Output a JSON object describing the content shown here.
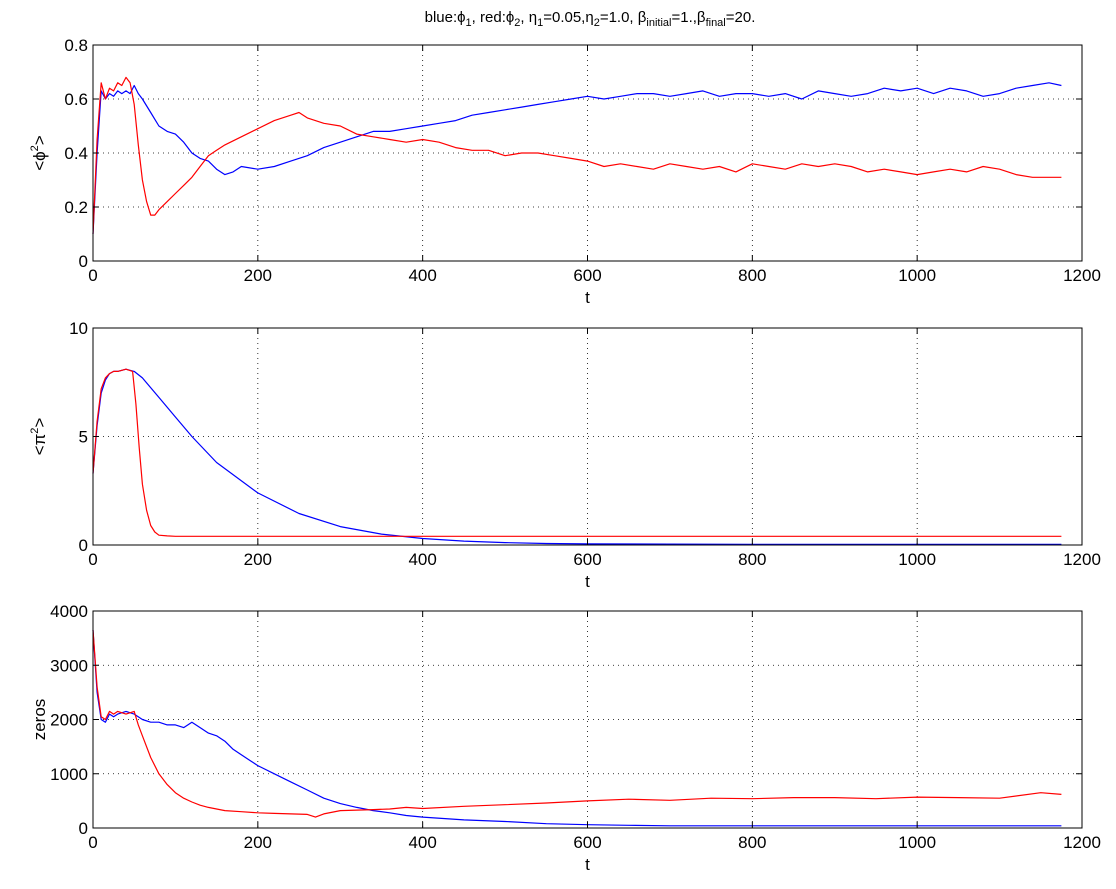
{
  "title": {
    "blue_prefix": "blue:",
    "phi": "ϕ",
    "sub1": "1",
    "red_prefix": "red:",
    "sub2": "2",
    "eta": "η",
    "eta1_val": "=0.05,",
    "eta2_val": "=1.0,",
    "beta": "β",
    "initial": "initial",
    "beta_initial_val": "=1.,",
    "final": "final",
    "beta_final_val": "=20."
  },
  "chart_data": [
    {
      "type": "line",
      "xlabel": "t",
      "ylabel": "<ϕ²>",
      "ylabel_parts": {
        "open": "<",
        "symbol": "ϕ",
        "sup": "2",
        "close": ">"
      },
      "xlim": [
        0,
        1200
      ],
      "ylim": [
        0,
        0.8
      ],
      "x_ticks": [
        0,
        200,
        400,
        600,
        800,
        1000,
        1200
      ],
      "y_ticks": [
        0,
        0.2,
        0.4,
        0.6,
        0.8
      ],
      "x_tick_labels": [
        "0",
        "200",
        "400",
        "600",
        "800",
        "1000",
        "1200"
      ],
      "y_tick_labels": [
        "0",
        "0.2",
        "0.4",
        "0.6",
        "0.8"
      ],
      "grid": true,
      "series": [
        {
          "color": "#0000ff",
          "x": [
            0,
            5,
            10,
            15,
            20,
            25,
            30,
            35,
            40,
            45,
            50,
            55,
            60,
            70,
            80,
            90,
            100,
            110,
            120,
            130,
            140,
            150,
            160,
            170,
            180,
            200,
            220,
            240,
            260,
            280,
            300,
            320,
            340,
            360,
            380,
            400,
            420,
            440,
            460,
            480,
            500,
            520,
            540,
            560,
            580,
            600,
            620,
            640,
            660,
            680,
            700,
            720,
            740,
            760,
            780,
            800,
            820,
            840,
            860,
            880,
            900,
            920,
            940,
            960,
            980,
            1000,
            1020,
            1040,
            1060,
            1080,
            1100,
            1120,
            1140,
            1160,
            1175
          ],
          "y": [
            0.1,
            0.4,
            0.63,
            0.6,
            0.62,
            0.61,
            0.63,
            0.62,
            0.63,
            0.62,
            0.65,
            0.62,
            0.6,
            0.55,
            0.5,
            0.48,
            0.47,
            0.44,
            0.4,
            0.38,
            0.37,
            0.34,
            0.32,
            0.33,
            0.35,
            0.34,
            0.35,
            0.37,
            0.39,
            0.42,
            0.44,
            0.46,
            0.48,
            0.48,
            0.49,
            0.5,
            0.51,
            0.52,
            0.54,
            0.55,
            0.56,
            0.57,
            0.58,
            0.59,
            0.6,
            0.61,
            0.6,
            0.61,
            0.62,
            0.62,
            0.61,
            0.62,
            0.63,
            0.61,
            0.62,
            0.62,
            0.61,
            0.62,
            0.6,
            0.63,
            0.62,
            0.61,
            0.62,
            0.64,
            0.63,
            0.64,
            0.62,
            0.64,
            0.63,
            0.61,
            0.62,
            0.64,
            0.65,
            0.66,
            0.65
          ]
        },
        {
          "color": "#ff0000",
          "x": [
            0,
            5,
            10,
            15,
            20,
            25,
            30,
            35,
            40,
            45,
            50,
            55,
            60,
            65,
            70,
            75,
            80,
            90,
            100,
            110,
            120,
            130,
            140,
            150,
            160,
            180,
            200,
            220,
            240,
            250,
            260,
            280,
            300,
            320,
            340,
            360,
            380,
            400,
            420,
            440,
            460,
            480,
            500,
            520,
            540,
            560,
            580,
            600,
            620,
            640,
            660,
            680,
            700,
            720,
            740,
            760,
            780,
            800,
            820,
            840,
            860,
            880,
            900,
            920,
            940,
            960,
            980,
            1000,
            1020,
            1040,
            1060,
            1080,
            1100,
            1120,
            1140,
            1160,
            1175
          ],
          "y": [
            0.1,
            0.45,
            0.66,
            0.6,
            0.64,
            0.63,
            0.66,
            0.65,
            0.68,
            0.66,
            0.58,
            0.43,
            0.3,
            0.22,
            0.17,
            0.17,
            0.19,
            0.22,
            0.25,
            0.28,
            0.31,
            0.35,
            0.39,
            0.41,
            0.43,
            0.46,
            0.49,
            0.52,
            0.54,
            0.55,
            0.53,
            0.51,
            0.5,
            0.47,
            0.46,
            0.45,
            0.44,
            0.45,
            0.44,
            0.42,
            0.41,
            0.41,
            0.39,
            0.4,
            0.4,
            0.39,
            0.38,
            0.37,
            0.35,
            0.36,
            0.35,
            0.34,
            0.36,
            0.35,
            0.34,
            0.35,
            0.33,
            0.36,
            0.35,
            0.34,
            0.36,
            0.35,
            0.36,
            0.35,
            0.33,
            0.34,
            0.33,
            0.32,
            0.33,
            0.34,
            0.33,
            0.35,
            0.34,
            0.32,
            0.31,
            0.31,
            0.31
          ]
        }
      ]
    },
    {
      "type": "line",
      "xlabel": "t",
      "ylabel": "<π²>",
      "ylabel_parts": {
        "open": "<",
        "symbol": "π",
        "sup": "2",
        "close": ">"
      },
      "xlim": [
        0,
        1200
      ],
      "ylim": [
        0,
        10
      ],
      "x_ticks": [
        0,
        200,
        400,
        600,
        800,
        1000,
        1200
      ],
      "y_ticks": [
        0,
        5,
        10
      ],
      "x_tick_labels": [
        "0",
        "200",
        "400",
        "600",
        "800",
        "1000",
        "1200"
      ],
      "y_tick_labels": [
        "0",
        "5",
        "10"
      ],
      "grid": true,
      "series": [
        {
          "color": "#0000ff",
          "x": [
            0,
            5,
            10,
            15,
            20,
            25,
            30,
            40,
            50,
            60,
            80,
            100,
            120,
            150,
            200,
            250,
            300,
            350,
            400,
            450,
            500,
            550,
            600,
            700,
            800,
            900,
            1000,
            1100,
            1175
          ],
          "y": [
            3.3,
            5.5,
            7.0,
            7.6,
            7.9,
            8.0,
            8.0,
            8.1,
            8.0,
            7.7,
            6.8,
            5.9,
            5.0,
            3.8,
            2.4,
            1.45,
            0.85,
            0.5,
            0.3,
            0.18,
            0.11,
            0.07,
            0.05,
            0.04,
            0.03,
            0.03,
            0.03,
            0.03,
            0.03
          ]
        },
        {
          "color": "#ff0000",
          "x": [
            0,
            5,
            10,
            15,
            20,
            25,
            30,
            40,
            48,
            52,
            56,
            60,
            65,
            70,
            75,
            80,
            90,
            100,
            200,
            300,
            400,
            500,
            600,
            700,
            800,
            900,
            1000,
            1100,
            1175
          ],
          "y": [
            3.3,
            5.7,
            7.2,
            7.7,
            7.9,
            8.0,
            8.0,
            8.1,
            8.0,
            6.5,
            4.5,
            2.8,
            1.6,
            0.9,
            0.6,
            0.45,
            0.42,
            0.4,
            0.4,
            0.4,
            0.4,
            0.4,
            0.4,
            0.4,
            0.4,
            0.4,
            0.4,
            0.4,
            0.4
          ]
        }
      ]
    },
    {
      "type": "line",
      "xlabel": "t",
      "ylabel": "zeros",
      "xlim": [
        0,
        1200
      ],
      "ylim": [
        0,
        4000
      ],
      "x_ticks": [
        0,
        200,
        400,
        600,
        800,
        1000,
        1200
      ],
      "y_ticks": [
        0,
        1000,
        2000,
        3000,
        4000
      ],
      "x_tick_labels": [
        "0",
        "200",
        "400",
        "600",
        "800",
        "1000",
        "1200"
      ],
      "y_tick_labels": [
        "0",
        "1000",
        "2000",
        "3000",
        "4000"
      ],
      "grid": true,
      "series": [
        {
          "color": "#0000ff",
          "x": [
            0,
            5,
            10,
            15,
            20,
            25,
            30,
            40,
            50,
            60,
            70,
            80,
            90,
            100,
            110,
            120,
            130,
            140,
            150,
            160,
            170,
            180,
            190,
            200,
            220,
            240,
            260,
            280,
            300,
            320,
            340,
            360,
            380,
            400,
            450,
            500,
            550,
            600,
            650,
            700,
            750,
            800,
            900,
            1000,
            1100,
            1175
          ],
          "y": [
            3650,
            2500,
            2000,
            1950,
            2100,
            2050,
            2100,
            2150,
            2100,
            2000,
            1950,
            1950,
            1900,
            1900,
            1850,
            1950,
            1850,
            1750,
            1700,
            1600,
            1450,
            1350,
            1250,
            1150,
            1000,
            850,
            700,
            550,
            450,
            380,
            320,
            280,
            230,
            200,
            150,
            120,
            80,
            60,
            50,
            40,
            40,
            40,
            40,
            40,
            40,
            40
          ]
        },
        {
          "color": "#ff0000",
          "x": [
            0,
            5,
            10,
            15,
            20,
            25,
            30,
            40,
            50,
            55,
            60,
            70,
            80,
            90,
            100,
            110,
            120,
            130,
            140,
            150,
            160,
            180,
            200,
            220,
            240,
            260,
            270,
            280,
            300,
            320,
            340,
            360,
            380,
            400,
            450,
            500,
            550,
            600,
            650,
            700,
            750,
            800,
            850,
            900,
            950,
            1000,
            1050,
            1100,
            1150,
            1175
          ],
          "y": [
            3650,
            2600,
            2050,
            2000,
            2150,
            2100,
            2150,
            2100,
            2150,
            1900,
            1700,
            1300,
            1000,
            800,
            650,
            550,
            480,
            420,
            380,
            350,
            320,
            300,
            280,
            270,
            260,
            250,
            200,
            260,
            320,
            330,
            340,
            350,
            380,
            360,
            400,
            430,
            460,
            500,
            530,
            510,
            550,
            540,
            560,
            560,
            540,
            570,
            560,
            550,
            650,
            620
          ]
        }
      ]
    }
  ]
}
